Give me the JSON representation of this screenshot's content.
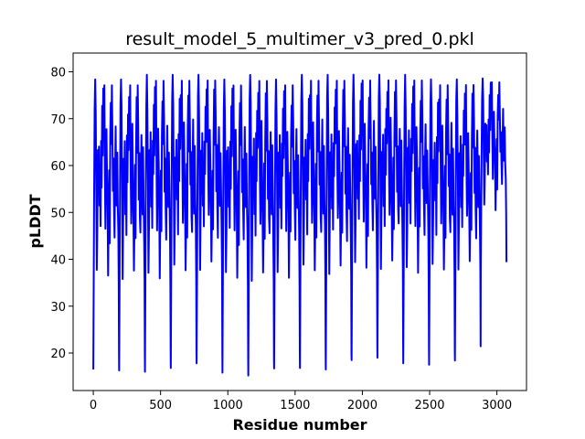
{
  "chart_data": {
    "type": "line",
    "title": "result_model_5_multimer_v3_pred_0.pkl",
    "xlabel": "Residue number",
    "ylabel": "pLDDT",
    "xlim": [
      -150,
      3220
    ],
    "ylim": [
      12,
      84
    ],
    "xticks": [
      0,
      500,
      1000,
      1500,
      2000,
      2500,
      3000
    ],
    "yticks": [
      20,
      30,
      40,
      50,
      60,
      70,
      80
    ],
    "grid": false,
    "legend": "none",
    "line_color": "#0000ff",
    "series": [
      {
        "name": "pLDDT",
        "repeat_count": 16,
        "repeat_length": 192,
        "start_residue": 0,
        "total_residues": 3072,
        "minima": [
          16.5,
          16.3,
          16.0,
          16.8,
          17.8,
          15.8,
          15.2,
          16.7,
          16.8,
          16.5,
          18.5,
          19.0,
          17.8,
          17.5,
          18.4,
          37.3
        ],
        "maxima": [
          79,
          79,
          80,
          80,
          80,
          79,
          80,
          79,
          80,
          80,
          80,
          80,
          80,
          79,
          79,
          79
        ],
        "segment_profile": [
          [
            0,
            0
          ],
          [
            6,
            0.58
          ],
          [
            10,
            0.9
          ],
          [
            14,
            0.99
          ],
          [
            18,
            0.88
          ],
          [
            22,
            0.62
          ],
          [
            26,
            0.33
          ],
          [
            30,
            0.5
          ],
          [
            34,
            0.73
          ],
          [
            38,
            0.6
          ],
          [
            42,
            0.78
          ],
          [
            46,
            0.55
          ],
          [
            50,
            0.68
          ],
          [
            54,
            0.47
          ],
          [
            58,
            0.78
          ],
          [
            62,
            0.64
          ],
          [
            66,
            0.89
          ],
          [
            70,
            0.74
          ],
          [
            74,
            0.94
          ],
          [
            78,
            0.78
          ],
          [
            82,
            0.97
          ],
          [
            86,
            0.68
          ],
          [
            90,
            0.49
          ],
          [
            94,
            0.61
          ],
          [
            98,
            0.82
          ],
          [
            102,
            0.68
          ],
          [
            106,
            0.55
          ],
          [
            110,
            0.33
          ],
          [
            114,
            0.5
          ],
          [
            118,
            0.68
          ],
          [
            122,
            0.45
          ],
          [
            126,
            0.79
          ],
          [
            130,
            0.92
          ],
          [
            134,
            0.75
          ],
          [
            138,
            0.97
          ],
          [
            142,
            0.83
          ],
          [
            146,
            0.6
          ],
          [
            150,
            0.73
          ],
          [
            154,
            0.53
          ],
          [
            158,
            0.45
          ],
          [
            162,
            0.68
          ],
          [
            166,
            0.82
          ],
          [
            170,
            0.64
          ],
          [
            174,
            0.54
          ],
          [
            178,
            0.74
          ],
          [
            182,
            0.58
          ],
          [
            186,
            0.46
          ],
          [
            189,
            0.3
          ],
          [
            191,
            0.05
          ]
        ]
      }
    ]
  }
}
